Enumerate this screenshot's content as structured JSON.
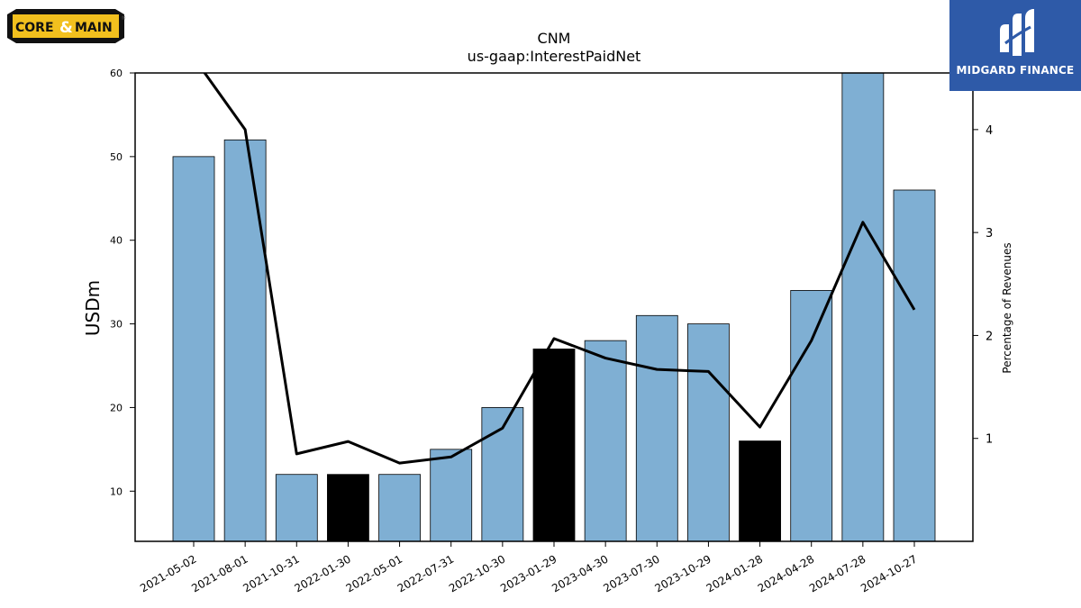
{
  "logos": {
    "left_text_a": "CORE",
    "left_text_amp": "&",
    "left_text_b": "MAIN",
    "left_registered": "®",
    "right_text": "MIDGARD FINANCE"
  },
  "chart_data": {
    "type": "bar",
    "title": "CNM",
    "subtitle": "us-gaap:InterestPaidNet",
    "ylabel": "USDm",
    "y2label": "Percentage of Revenues",
    "ylim": [
      4,
      60
    ],
    "y2lim": [
      0,
      4.55
    ],
    "yticks": [
      10,
      20,
      30,
      40,
      50,
      60
    ],
    "y2ticks": [
      1,
      2,
      3,
      4
    ],
    "categories": [
      "2021-05-02",
      "2021-08-01",
      "2021-10-31",
      "2022-01-30",
      "2022-05-01",
      "2022-07-31",
      "2022-10-30",
      "2023-01-29",
      "2023-04-30",
      "2023-07-30",
      "2023-10-29",
      "2024-01-28",
      "2024-04-28",
      "2024-07-28",
      "2024-10-27"
    ],
    "series": [
      {
        "type": "bar",
        "axis": "left",
        "values": [
          50,
          52,
          12,
          12,
          12,
          15,
          20,
          27,
          28,
          31,
          30,
          16,
          34,
          60,
          46
        ],
        "colors": [
          "#7fafd3",
          "#7fafd3",
          "#7fafd3",
          "#000000",
          "#7fafd3",
          "#7fafd3",
          "#7fafd3",
          "#000000",
          "#7fafd3",
          "#7fafd3",
          "#7fafd3",
          "#000000",
          "#7fafd3",
          "#7fafd3",
          "#7fafd3"
        ]
      },
      {
        "type": "line",
        "axis": "right",
        "color": "#000000",
        "values": [
          4.7,
          4.0,
          0.85,
          0.97,
          0.76,
          0.82,
          1.1,
          1.97,
          1.78,
          1.67,
          1.65,
          1.11,
          1.95,
          3.1,
          2.25
        ]
      }
    ],
    "grid": false
  }
}
